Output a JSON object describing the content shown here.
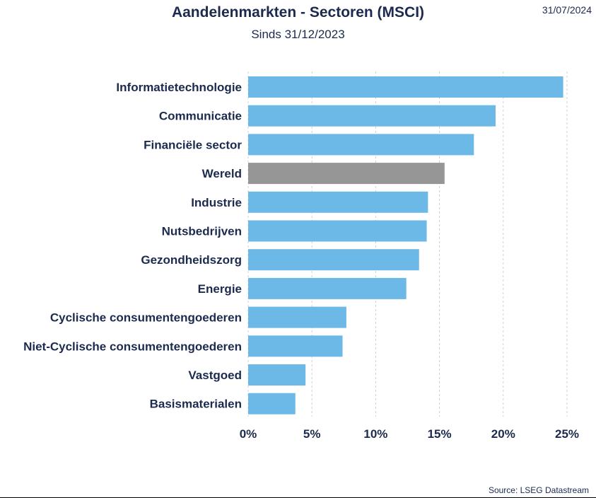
{
  "header": {
    "title": "Aandelenmarkten - Sectoren (MSCI)",
    "subtitle": "Sinds 31/12/2023",
    "date": "31/07/2024"
  },
  "footer": {
    "source": "Source: LSEG Datastream"
  },
  "colors": {
    "bar": "#6cb8e6",
    "highlight": "#969696",
    "text": "#1b2a4e",
    "grid": "#d0d0d0"
  },
  "chart_data": {
    "type": "bar",
    "orientation": "horizontal",
    "title": "Aandelenmarkten - Sectoren (MSCI)",
    "subtitle": "Sinds 31/12/2023",
    "categories": [
      "Informatietechnologie",
      "Communicatie",
      "Financiële sector",
      "Wereld",
      "Industrie",
      "Nutsbedrijven",
      "Gezondheidszorg",
      "Energie",
      "Cyclische consumentengoederen",
      "Niet-Cyclische consumentengoederen",
      "Vastgoed",
      "Basismaterialen"
    ],
    "values": [
      24.7,
      19.4,
      17.7,
      15.4,
      14.1,
      14.0,
      13.4,
      12.4,
      7.7,
      7.4,
      4.5,
      3.7
    ],
    "highlight": [
      "Wereld"
    ],
    "xlim": [
      0,
      25
    ],
    "xticks": [
      0,
      5,
      10,
      15,
      20,
      25
    ],
    "xtick_labels": [
      "0%",
      "5%",
      "10%",
      "15%",
      "20%",
      "25%"
    ],
    "grid": "vertical-dashed"
  }
}
